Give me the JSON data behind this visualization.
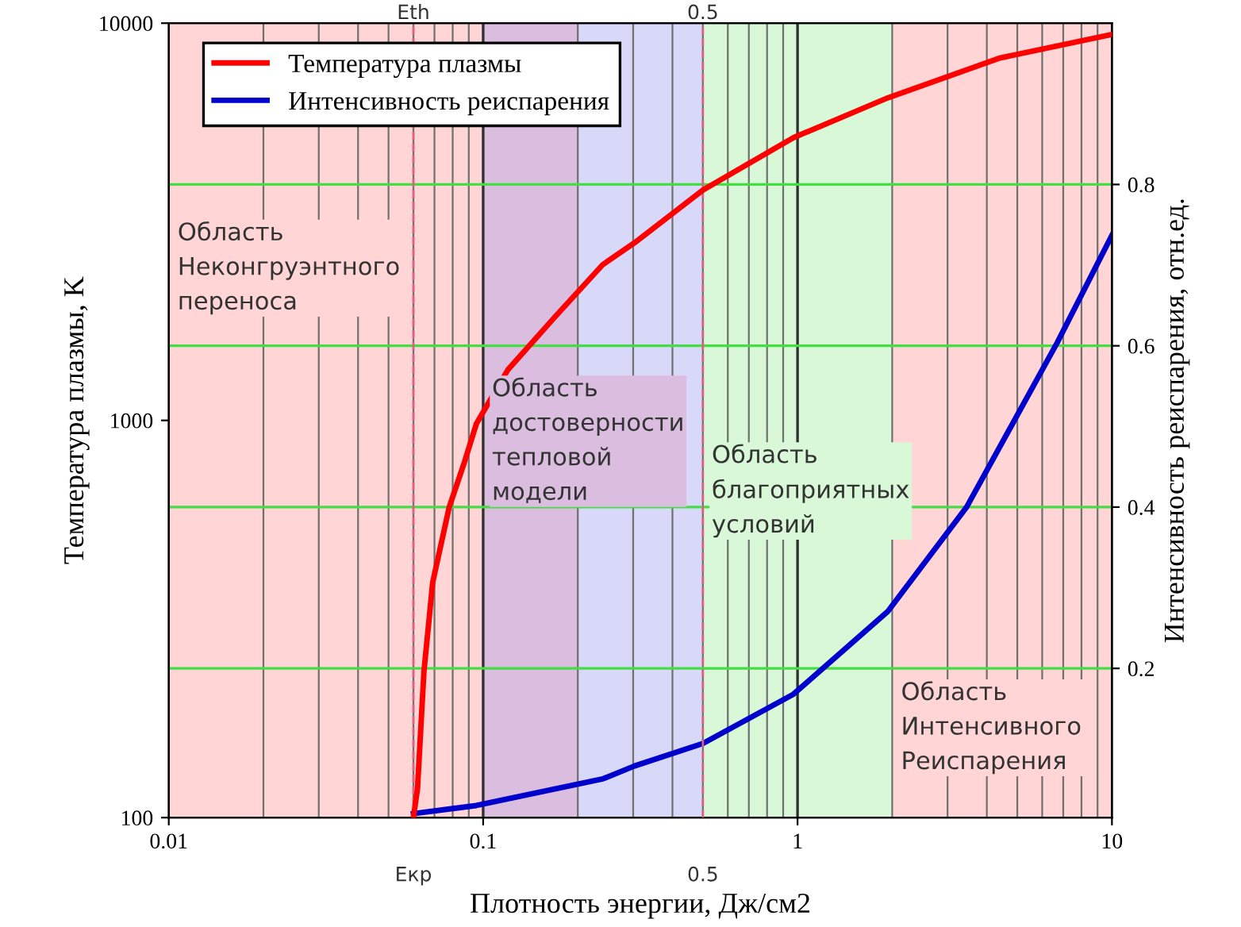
{
  "chart_data": {
    "type": "line",
    "xlabel": "Плотность энергии, Дж/см2",
    "ylabel": "Температура плазмы, K",
    "y2label": "Интенсивность реиспарения, отн.ед.",
    "log": "xy",
    "xlim": [
      0.01,
      10
    ],
    "xticks": [
      0.01,
      0.1,
      1,
      10
    ],
    "ylim": [
      100,
      10000
    ],
    "yticks": [
      100,
      1000,
      10000
    ],
    "y2lim": [
      0.015,
      1.0
    ],
    "y2ticks": [
      0.2,
      0.4,
      0.6,
      0.8
    ],
    "grid": true,
    "legend": "top left",
    "series": [
      {
        "name": "Температура плазмы",
        "color": "#ff0000",
        "x": [
          0.06,
          0.0618,
          0.0648,
          0.0691,
          0.0779,
          0.0876,
          0.0952,
          0.12,
          0.169,
          0.24,
          0.303,
          0.5,
          0.97,
          1.94,
          4.37,
          10
        ],
        "values": [
          100,
          118,
          233,
          391,
          603,
          794,
          982,
          1343,
          1820,
          2466,
          2800,
          3800,
          5150,
          6490,
          8160,
          9370
        ]
      },
      {
        "name": "Интенсивность реиспарения",
        "color": "#0000cc",
        "axis": "y2",
        "x": [
          0.06,
          0.095,
          0.24,
          0.303,
          0.5,
          0.97,
          1.94,
          3.45,
          6.7,
          10
        ],
        "values": [
          0.02,
          0.03,
          0.063,
          0.079,
          0.107,
          0.168,
          0.271,
          0.4,
          0.604,
          0.737
        ]
      }
    ],
    "bands": [
      {
        "axis": "x",
        "from": 0.01,
        "to": 0.1,
        "color": "#ffd5d5"
      },
      {
        "axis": "x",
        "from": 0.1,
        "to": 0.2,
        "color": "#dbbde0"
      },
      {
        "axis": "x",
        "from": 0.2,
        "to": 0.5,
        "color": "#d8d8f8"
      },
      {
        "axis": "x",
        "from": 0.5,
        "to": 2,
        "color": "#d8f8d8"
      },
      {
        "axis": "x",
        "from": 2,
        "to": 10,
        "color": "#ffd5d5"
      }
    ],
    "ref_lines": [
      {
        "axis": "x",
        "value": 0.06,
        "label": "Eкр",
        "color": "#e06080",
        "line_style": "dashed"
      },
      {
        "axis": "x",
        "value": 0.5,
        "label": "0.5",
        "color": "#e06080",
        "line_style": "dashed"
      }
    ],
    "annotations": [
      {
        "text": "Eth",
        "x": 0.06,
        "y": 10000
      },
      {
        "text": "0.5",
        "x": 0.5,
        "y": 10000
      },
      {
        "text": "Область\nНеконгруэнтного\nпереноса",
        "x": 0.01,
        "y": 3160
      },
      {
        "text": "Область\nдостоверности\nтепловой\nмодели",
        "x": 0.1,
        "y": 1280
      },
      {
        "text": "Область\nблагоприятных\nусловий",
        "x": 0.5,
        "y": 870
      },
      {
        "text": "Область\nИнтенсивного\nРеиспарения",
        "x": 2,
        "y": 220
      }
    ]
  }
}
